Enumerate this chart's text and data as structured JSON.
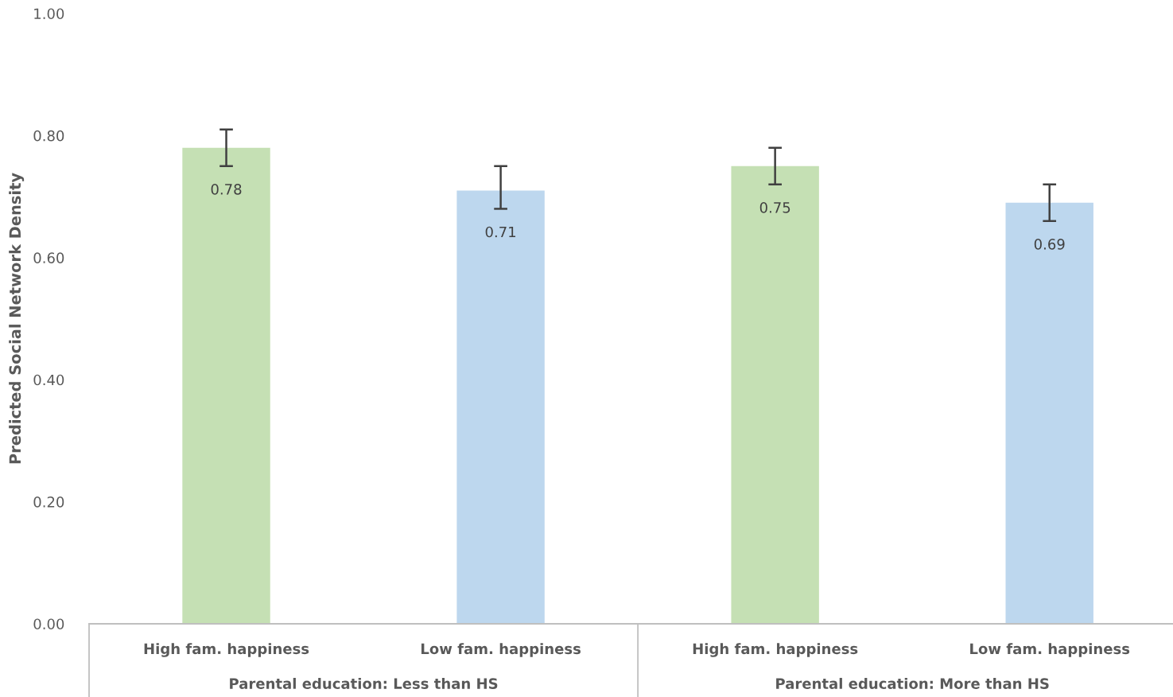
{
  "chart_data": {
    "type": "bar",
    "ylabel": "Predicted Social Network Density",
    "categories": [
      "High fam. happiness",
      "Low fam. happiness",
      "High fam. happiness",
      "Low fam. happiness"
    ],
    "values": [
      0.78,
      0.71,
      0.75,
      0.69
    ],
    "colors": [
      "#c5e0b4",
      "#bdd7ee",
      "#c5e0b4",
      "#bdd7ee"
    ],
    "errors": [
      [
        0.75,
        0.81
      ],
      [
        0.68,
        0.75
      ],
      [
        0.72,
        0.78
      ],
      [
        0.66,
        0.72
      ]
    ],
    "data_labels": true,
    "ylim": [
      0,
      1
    ],
    "yticks": [
      {
        "value": 0,
        "label": "0.00"
      },
      {
        "value": 0.2,
        "label": "0.20"
      },
      {
        "value": 0.4,
        "label": "0.40"
      },
      {
        "value": 0.6,
        "label": "0.60"
      },
      {
        "value": 0.8,
        "label": "0.80"
      },
      {
        "value": 1,
        "label": "1.00"
      }
    ],
    "annotations": [
      "Parental education: Less than HS",
      "Parental education: More than HS"
    ],
    "grid": false
  }
}
